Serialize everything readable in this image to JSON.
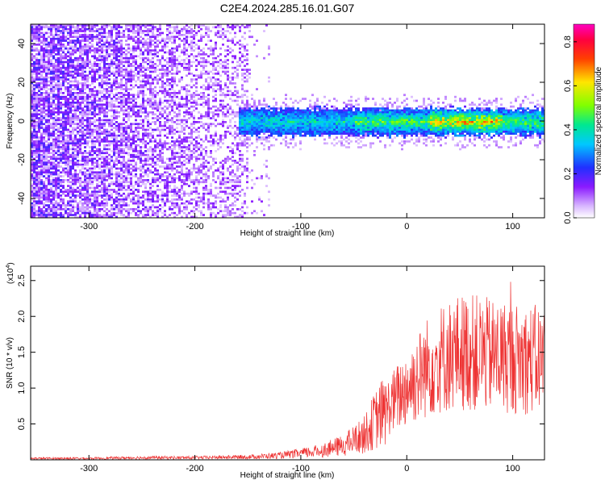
{
  "figure_title": "C2E4.2024.285.16.01.G07",
  "chart_data": [
    {
      "type": "heatmap",
      "title": "C2E4.2024.285.16.01.G07",
      "xlabel": "Height of straight line (km)",
      "ylabel": "Frequency (Hz)",
      "xlim": [
        -355,
        130
      ],
      "ylim": [
        -50,
        50
      ],
      "x_ticks": [
        -300,
        -200,
        -100,
        0,
        100
      ],
      "x_tick_labels": [
        "-300",
        "-200",
        "-100",
        "0",
        "100"
      ],
      "y_ticks": [
        -40,
        -20,
        0,
        20,
        40
      ],
      "y_tick_labels": [
        "-40",
        "-20",
        "0",
        "20",
        "40"
      ],
      "colorbar": {
        "label": "Normalized spectral amplitude",
        "range": [
          0.0,
          0.88
        ],
        "ticks": [
          0.0,
          0.2,
          0.4,
          0.6,
          0.8
        ],
        "tick_labels": [
          "0.0",
          "0.2",
          "0.4",
          "0.6",
          "0.8"
        ],
        "colormap": "rainbow (white-purple-blue-cyan-green-yellow-red-magenta)"
      },
      "features": {
        "broadband_noise_region_km": [
          -355,
          -150
        ],
        "carrier_band_center_hz": 0,
        "carrier_band_halfwidth_hz": 7,
        "carrier_band_start_km": -160,
        "peak_amplitude_region_km": [
          20,
          90
        ]
      },
      "grid": false
    },
    {
      "type": "line",
      "title": "",
      "xlabel": "Height of straight line (km)",
      "ylabel": "SNR (10 * v/v)",
      "y_scale_label": "(x10",
      "y_scale_exponent": "4",
      "y_scale": 10000,
      "xlim": [
        -355,
        130
      ],
      "ylim": [
        0,
        2.7
      ],
      "x_ticks": [
        -300,
        -200,
        -100,
        0,
        100
      ],
      "x_tick_labels": [
        "-300",
        "-200",
        "-100",
        "0",
        "100"
      ],
      "y_ticks": [
        0.5,
        1.0,
        1.5,
        2.0,
        2.5
      ],
      "y_tick_labels": [
        "0.5",
        "1.0",
        "1.5",
        "2.0",
        "2.5"
      ],
      "series_color": "#ee3333",
      "x": [
        -355,
        -300,
        -250,
        -200,
        -150,
        -120,
        -100,
        -80,
        -60,
        -40,
        -30,
        -20,
        -10,
        0,
        10,
        20,
        30,
        40,
        50,
        60,
        70,
        80,
        90,
        100,
        110,
        120,
        130
      ],
      "y": [
        0.02,
        0.02,
        0.03,
        0.03,
        0.04,
        0.06,
        0.09,
        0.13,
        0.2,
        0.35,
        0.55,
        0.7,
        0.85,
        1.0,
        1.15,
        1.3,
        1.4,
        1.45,
        1.5,
        1.5,
        1.48,
        1.45,
        1.45,
        1.42,
        1.4,
        1.4,
        1.4
      ],
      "grid": false
    }
  ]
}
